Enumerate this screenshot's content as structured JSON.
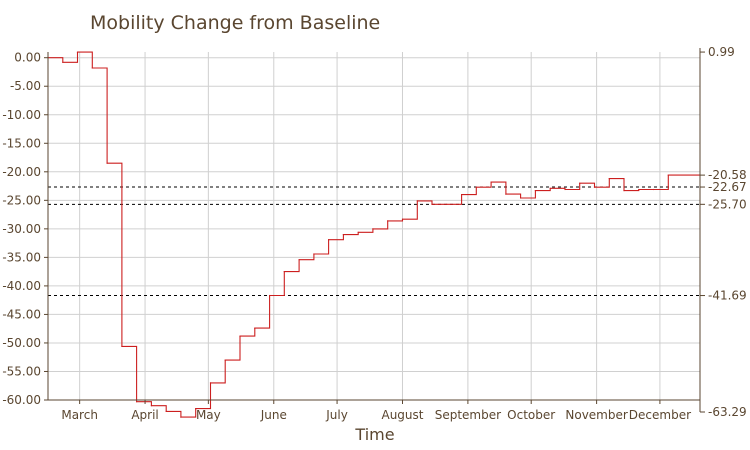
{
  "chart_data": {
    "type": "line",
    "title": "Mobility Change from Baseline",
    "xlabel": "Time",
    "ylabel": "",
    "ylim": [
      -60,
      1
    ],
    "xlim": [
      "2020-02-15",
      "2020-12-20"
    ],
    "grid": true,
    "colors": {
      "line": "#cc1f1f",
      "grid": "#d0d0d0",
      "axis": "#5a4630",
      "text": "#5a4630"
    },
    "x_tick_labels": [
      {
        "date": "2020-03-01",
        "label": "March"
      },
      {
        "date": "2020-04-01",
        "label": "April"
      },
      {
        "date": "2020-05-01",
        "label": "May"
      },
      {
        "date": "2020-06-01",
        "label": "June"
      },
      {
        "date": "2020-07-01",
        "label": "July"
      },
      {
        "date": "2020-08-01",
        "label": "August"
      },
      {
        "date": "2020-09-01",
        "label": "September"
      },
      {
        "date": "2020-10-01",
        "label": "October"
      },
      {
        "date": "2020-11-01",
        "label": "November"
      },
      {
        "date": "2020-12-01",
        "label": "December"
      }
    ],
    "y_tick_labels": [
      {
        "value": 0,
        "label": "0.00"
      },
      {
        "value": -5,
        "label": "-5.00"
      },
      {
        "value": -10,
        "label": "-10.00"
      },
      {
        "value": -15,
        "label": "-15.00"
      },
      {
        "value": -20,
        "label": "-20.00"
      },
      {
        "value": -25,
        "label": "-25.00"
      },
      {
        "value": -30,
        "label": "-30.00"
      },
      {
        "value": -35,
        "label": "-35.00"
      },
      {
        "value": -40,
        "label": "-40.00"
      },
      {
        "value": -45,
        "label": "-45.00"
      },
      {
        "value": -50,
        "label": "-50.00"
      },
      {
        "value": -55,
        "label": "-55.00"
      },
      {
        "value": -60,
        "label": "-60.00"
      }
    ],
    "right_axis_labels": [
      {
        "value": 0.99,
        "label": "0.99"
      },
      {
        "value": -20.58,
        "label": "-20.58"
      },
      {
        "value": -22.67,
        "label": "-22.67"
      },
      {
        "value": -25.7,
        "label": "-25.70"
      },
      {
        "value": -41.69,
        "label": "-41.69"
      },
      {
        "value": -63.29,
        "label": "-63.29"
      }
    ],
    "reference_lines": [
      -22.67,
      -25.7,
      -41.69
    ],
    "series": [
      {
        "points": [
          {
            "x": "2020-02-15",
            "y": 0.0
          },
          {
            "x": "2020-02-22",
            "y": -0.8
          },
          {
            "x": "2020-02-29",
            "y": 0.99
          },
          {
            "x": "2020-03-07",
            "y": -1.8
          },
          {
            "x": "2020-03-14",
            "y": -18.5
          },
          {
            "x": "2020-03-21",
            "y": -50.6
          },
          {
            "x": "2020-03-28",
            "y": -60.3
          },
          {
            "x": "2020-04-04",
            "y": -61.0
          },
          {
            "x": "2020-04-11",
            "y": -62.0
          },
          {
            "x": "2020-04-18",
            "y": -63.0
          },
          {
            "x": "2020-04-25",
            "y": -61.5
          },
          {
            "x": "2020-05-02",
            "y": -57.0
          },
          {
            "x": "2020-05-09",
            "y": -53.0
          },
          {
            "x": "2020-05-16",
            "y": -48.8
          },
          {
            "x": "2020-05-23",
            "y": -47.4
          },
          {
            "x": "2020-05-30",
            "y": -41.69
          },
          {
            "x": "2020-06-06",
            "y": -37.5
          },
          {
            "x": "2020-06-13",
            "y": -35.4
          },
          {
            "x": "2020-06-20",
            "y": -34.4
          },
          {
            "x": "2020-06-27",
            "y": -31.9
          },
          {
            "x": "2020-07-04",
            "y": -31.0
          },
          {
            "x": "2020-07-11",
            "y": -30.6
          },
          {
            "x": "2020-07-18",
            "y": -30.0
          },
          {
            "x": "2020-07-25",
            "y": -28.6
          },
          {
            "x": "2020-08-01",
            "y": -28.3
          },
          {
            "x": "2020-08-08",
            "y": -25.1
          },
          {
            "x": "2020-08-15",
            "y": -25.7
          },
          {
            "x": "2020-08-22",
            "y": -25.7
          },
          {
            "x": "2020-08-29",
            "y": -24.0
          },
          {
            "x": "2020-09-05",
            "y": -22.7
          },
          {
            "x": "2020-09-12",
            "y": -21.8
          },
          {
            "x": "2020-09-19",
            "y": -23.9
          },
          {
            "x": "2020-09-26",
            "y": -24.6
          },
          {
            "x": "2020-10-03",
            "y": -23.3
          },
          {
            "x": "2020-10-10",
            "y": -22.9
          },
          {
            "x": "2020-10-17",
            "y": -23.1
          },
          {
            "x": "2020-10-24",
            "y": -22.0
          },
          {
            "x": "2020-10-31",
            "y": -22.7
          },
          {
            "x": "2020-11-07",
            "y": -21.2
          },
          {
            "x": "2020-11-14",
            "y": -23.3
          },
          {
            "x": "2020-11-21",
            "y": -23.1
          },
          {
            "x": "2020-11-28",
            "y": -23.1
          },
          {
            "x": "2020-12-05",
            "y": -20.58
          }
        ]
      }
    ]
  }
}
